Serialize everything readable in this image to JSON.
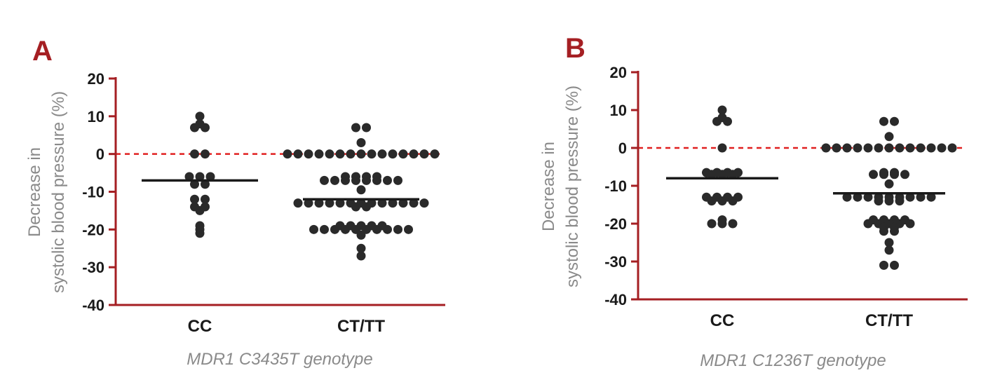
{
  "chart_data": [
    {
      "type": "scatter",
      "panel_label": "A",
      "title": "",
      "ylabel_lines": [
        "Decrease in",
        "systolic blood pressure (%)"
      ],
      "xlabel": "MDR1 C3435T genotype",
      "ylim": [
        -40,
        20
      ],
      "yticks": [
        20,
        10,
        0,
        -10,
        -20,
        -30,
        -40
      ],
      "ytick_labels": [
        "20",
        "10",
        "0",
        "-10",
        "-20",
        "-30",
        "-40"
      ],
      "reference_line": 0,
      "categories": [
        "CC",
        "CT/TT"
      ],
      "series": [
        {
          "category": "CC",
          "mean": -7,
          "values": [
            10,
            8,
            7,
            7,
            0,
            0,
            -6,
            -6,
            -6,
            -8,
            -8,
            -12,
            -12,
            -14,
            -14,
            -15,
            -19,
            -20,
            -21
          ]
        },
        {
          "category": "CT/TT",
          "mean": -12,
          "values": [
            7,
            7,
            3,
            0,
            0,
            0,
            0,
            0,
            0,
            0,
            0,
            0,
            0,
            0,
            0,
            0,
            0,
            0,
            -7,
            -7,
            -7,
            -7,
            -6,
            -6,
            -6,
            -6,
            -7,
            -7,
            -7,
            -7,
            -9.5,
            -13,
            -13,
            -13,
            -13,
            -13,
            -13,
            -13,
            -14,
            -14,
            -13,
            -13,
            -13,
            -13,
            -13,
            -13,
            -19,
            -19,
            -20,
            -20,
            -20,
            -20,
            -20,
            -19,
            -20,
            -20,
            -20,
            -20,
            -20,
            -19,
            -19,
            -21.5,
            -25,
            -27
          ]
        }
      ],
      "grid": false,
      "legend": "none"
    },
    {
      "type": "scatter",
      "panel_label": "B",
      "title": "",
      "ylabel_lines": [
        "Decrease in",
        "systolic blood pressure (%)"
      ],
      "xlabel": "MDR1 C1236T genotype",
      "ylim": [
        -40,
        20
      ],
      "yticks": [
        20,
        10,
        0,
        -10,
        -20,
        -30,
        -40
      ],
      "ytick_labels": [
        "20",
        "10",
        "0",
        "-10",
        "-20",
        "-30",
        "-40"
      ],
      "reference_line": 0,
      "categories": [
        "CC",
        "CT/TT"
      ],
      "series": [
        {
          "category": "CC",
          "mean": -8,
          "values": [
            10,
            8,
            7,
            7,
            0,
            -6.5,
            -6.5,
            -7,
            -7,
            -7,
            -6.5,
            -6.5,
            -13,
            -13,
            -14,
            -14,
            -14,
            -13,
            -13,
            -20,
            -20,
            -20,
            -19
          ]
        },
        {
          "category": "CT/TT",
          "mean": -12,
          "values": [
            7,
            7,
            3,
            0,
            0,
            0,
            0,
            0,
            0,
            0,
            0,
            0,
            0,
            0,
            0,
            0,
            -7,
            -7,
            -6.5,
            -6.5,
            -7,
            -7,
            -9.5,
            -13,
            -13,
            -13,
            -14,
            -14,
            -14,
            -13,
            -13,
            -13,
            -13,
            -13,
            -13,
            -19,
            -19,
            -20,
            -20,
            -21,
            -22,
            -22,
            -21,
            -20,
            -20,
            -20,
            -19,
            -19,
            -25,
            -27,
            -31,
            -31
          ]
        }
      ],
      "grid": false,
      "legend": "none"
    }
  ]
}
